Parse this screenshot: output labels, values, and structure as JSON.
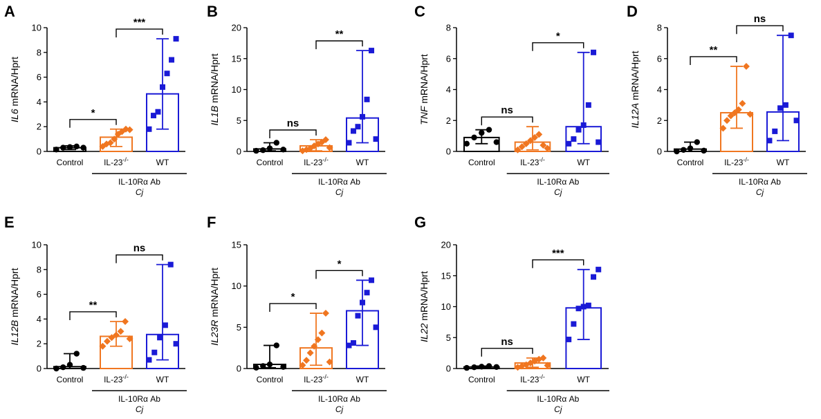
{
  "colors": {
    "Control": "#000000",
    "IL-23-/-": "#f07620",
    "WT": "#1a1ad6"
  },
  "chart_data": [
    {
      "type": "bar",
      "panel": "A",
      "gene": "IL6",
      "ylabel_suffix": " mRNA/Hprt",
      "categories": [
        "Control",
        "IL-23-/-",
        "WT"
      ],
      "ylim": [
        0,
        10
      ],
      "yticks": [
        0,
        2,
        4,
        6,
        8,
        10
      ],
      "series": [
        {
          "name": "Control",
          "mean": 0.3,
          "min": 0.15,
          "max": 0.45,
          "points": [
            0.15,
            0.3,
            0.35,
            0.4,
            0.3
          ]
        },
        {
          "name": "IL-23-/-",
          "mean": 1.15,
          "min": 0.4,
          "max": 1.8,
          "points": [
            0.4,
            0.6,
            0.7,
            1.0,
            1.4,
            1.6,
            1.8,
            1.75
          ]
        },
        {
          "name": "WT",
          "mean": 4.65,
          "min": 1.8,
          "max": 9.1,
          "points": [
            1.8,
            2.9,
            3.2,
            5.2,
            6.3,
            7.4,
            9.1
          ]
        }
      ],
      "comparisons": [
        {
          "from": 0,
          "to": 1,
          "label": "*"
        },
        {
          "from": 1,
          "to": 2,
          "label": "***"
        }
      ],
      "group_label": "IL-10Rα Ab",
      "group_sublabel": "Cj"
    },
    {
      "type": "bar",
      "panel": "B",
      "gene": "IL1B",
      "ylabel_suffix": " mRNA/Hprt",
      "categories": [
        "Control",
        "IL-23-/-",
        "WT"
      ],
      "ylim": [
        0,
        20
      ],
      "yticks": [
        0,
        5,
        10,
        15,
        20
      ],
      "series": [
        {
          "name": "Control",
          "mean": 0.4,
          "min": 0.1,
          "max": 1.4,
          "points": [
            0.1,
            0.2,
            0.5,
            1.4,
            0.3
          ]
        },
        {
          "name": "IL-23-/-",
          "mean": 0.9,
          "min": 0.1,
          "max": 1.9,
          "points": [
            0.1,
            0.3,
            0.5,
            0.9,
            1.2,
            1.5,
            1.9,
            0.6
          ]
        },
        {
          "name": "WT",
          "mean": 5.4,
          "min": 1.4,
          "max": 16.3,
          "points": [
            1.4,
            3.3,
            4.0,
            5.6,
            8.4,
            16.3,
            2.0
          ]
        }
      ],
      "comparisons": [
        {
          "from": 0,
          "to": 1,
          "label": "ns"
        },
        {
          "from": 1,
          "to": 2,
          "label": "**"
        }
      ],
      "group_label": "IL-10Rα Ab",
      "group_sublabel": "Cj"
    },
    {
      "type": "bar",
      "panel": "C",
      "gene": "TNF",
      "ylabel_suffix": " mRNA/Hprt",
      "categories": [
        "Control",
        "IL-23-/-",
        "WT"
      ],
      "ylim": [
        0,
        8
      ],
      "yticks": [
        0,
        2,
        4,
        6,
        8
      ],
      "series": [
        {
          "name": "Control",
          "mean": 0.9,
          "min": 0.5,
          "max": 1.4,
          "points": [
            0.5,
            0.9,
            1.2,
            1.4,
            0.6
          ]
        },
        {
          "name": "IL-23-/-",
          "mean": 0.6,
          "min": 0.1,
          "max": 1.6,
          "points": [
            0.1,
            0.3,
            0.5,
            0.7,
            0.9,
            1.1,
            0.4,
            0.2
          ]
        },
        {
          "name": "WT",
          "mean": 1.6,
          "min": 0.5,
          "max": 6.4,
          "points": [
            0.5,
            0.8,
            1.4,
            1.7,
            3.0,
            6.4,
            0.6
          ]
        }
      ],
      "comparisons": [
        {
          "from": 0,
          "to": 1,
          "label": "ns"
        },
        {
          "from": 1,
          "to": 2,
          "label": "*"
        }
      ],
      "group_label": "IL-10Rα Ab",
      "group_sublabel": "Cj"
    },
    {
      "type": "bar",
      "panel": "D",
      "gene": "IL12A",
      "ylabel_suffix": " mRNA/Hprt",
      "categories": [
        "Control",
        "IL-23-/-",
        "WT"
      ],
      "ylim": [
        0,
        8
      ],
      "yticks": [
        0,
        2,
        4,
        6,
        8
      ],
      "series": [
        {
          "name": "Control",
          "mean": 0.15,
          "min": 0.0,
          "max": 0.6,
          "points": [
            0.0,
            0.1,
            0.2,
            0.6,
            0.05
          ]
        },
        {
          "name": "IL-23-/-",
          "mean": 2.5,
          "min": 1.5,
          "max": 5.5,
          "points": [
            1.5,
            2.0,
            2.3,
            2.5,
            2.7,
            3.1,
            5.5,
            2.4
          ]
        },
        {
          "name": "WT",
          "mean": 2.55,
          "min": 0.7,
          "max": 7.5,
          "points": [
            0.7,
            1.3,
            2.8,
            3.0,
            7.5,
            2.0
          ]
        }
      ],
      "comparisons": [
        {
          "from": 0,
          "to": 1,
          "label": "**"
        },
        {
          "from": 1,
          "to": 2,
          "label": "ns"
        }
      ],
      "group_label": "IL-10Rα Ab",
      "group_sublabel": "Cj"
    },
    {
      "type": "bar",
      "panel": "E",
      "gene": "IL12B",
      "ylabel_suffix": " mRNA/Hprt",
      "categories": [
        "Control",
        "IL-23-/-",
        "WT"
      ],
      "ylim": [
        0,
        10
      ],
      "yticks": [
        0,
        2,
        4,
        6,
        8,
        10
      ],
      "series": [
        {
          "name": "Control",
          "mean": 0.15,
          "min": 0.0,
          "max": 1.2,
          "points": [
            0.0,
            0.1,
            0.3,
            1.2,
            0.05
          ]
        },
        {
          "name": "IL-23-/-",
          "mean": 2.6,
          "min": 1.8,
          "max": 3.8,
          "points": [
            1.8,
            2.2,
            2.5,
            2.7,
            3.0,
            3.8,
            2.4
          ]
        },
        {
          "name": "WT",
          "mean": 2.75,
          "min": 0.7,
          "max": 8.4,
          "points": [
            0.7,
            1.3,
            2.5,
            3.5,
            8.4,
            2.0
          ]
        }
      ],
      "comparisons": [
        {
          "from": 0,
          "to": 1,
          "label": "**"
        },
        {
          "from": 1,
          "to": 2,
          "label": "ns"
        }
      ],
      "group_label": "IL-10Rα Ab",
      "group_sublabel": "Cj"
    },
    {
      "type": "bar",
      "panel": "F",
      "gene": "IL23R",
      "ylabel_suffix": " mRNA/Hprt",
      "categories": [
        "Control",
        "IL-23-/-",
        "WT"
      ],
      "ylim": [
        0,
        15
      ],
      "yticks": [
        0,
        5,
        10,
        15
      ],
      "series": [
        {
          "name": "Control",
          "mean": 0.5,
          "min": 0.1,
          "max": 2.8,
          "points": [
            0.1,
            0.3,
            0.5,
            2.8,
            0.2
          ]
        },
        {
          "name": "IL-23-/-",
          "mean": 2.5,
          "min": 0.4,
          "max": 6.7,
          "points": [
            0.4,
            1.0,
            1.9,
            2.7,
            3.5,
            4.3,
            6.7,
            0.8
          ]
        },
        {
          "name": "WT",
          "mean": 7.0,
          "min": 2.8,
          "max": 10.7,
          "points": [
            2.8,
            3.1,
            6.4,
            8.0,
            9.2,
            10.7,
            5.0
          ]
        }
      ],
      "comparisons": [
        {
          "from": 0,
          "to": 1,
          "label": "*"
        },
        {
          "from": 1,
          "to": 2,
          "label": "*"
        }
      ],
      "group_label": "IL-10Rα Ab",
      "group_sublabel": "Cj"
    },
    {
      "type": "bar",
      "panel": "G",
      "gene": "IL22",
      "ylabel_suffix": " mRNA/Hprt",
      "categories": [
        "Control",
        "IL-23-/-",
        "WT"
      ],
      "ylim": [
        0,
        20
      ],
      "yticks": [
        0,
        5,
        10,
        15,
        20
      ],
      "series": [
        {
          "name": "Control",
          "mean": 0.25,
          "min": 0.1,
          "max": 0.4,
          "points": [
            0.1,
            0.2,
            0.3,
            0.4,
            0.25
          ]
        },
        {
          "name": "IL-23-/-",
          "mean": 0.9,
          "min": 0.2,
          "max": 1.7,
          "points": [
            0.2,
            0.4,
            0.6,
            0.9,
            1.2,
            1.5,
            1.7,
            0.5
          ]
        },
        {
          "name": "WT",
          "mean": 9.8,
          "min": 4.7,
          "max": 16.0,
          "points": [
            4.7,
            7.2,
            9.7,
            10.0,
            10.2,
            14.8,
            16.0
          ]
        }
      ],
      "comparisons": [
        {
          "from": 0,
          "to": 1,
          "label": "ns"
        },
        {
          "from": 1,
          "to": 2,
          "label": "***"
        }
      ],
      "group_label": "IL-10Rα Ab",
      "group_sublabel": "Cj"
    }
  ]
}
